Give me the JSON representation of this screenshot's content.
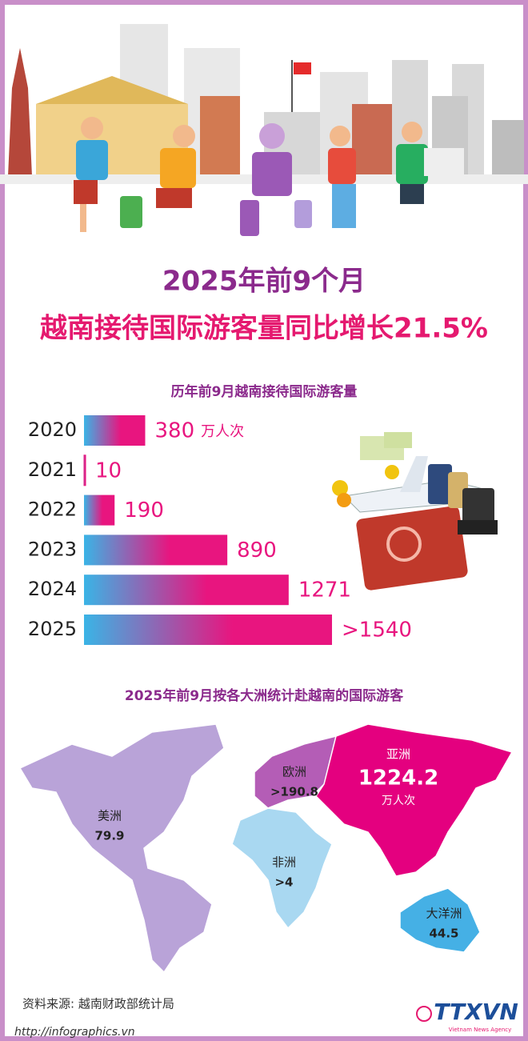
{
  "header": {
    "title_line1": "2025年前9个月",
    "title_line2": "越南接待国际游客量同比增长21.5%"
  },
  "chart_data": [
    {
      "type": "bar",
      "orientation": "horizontal",
      "title": "历年前9月越南接待国际游客量",
      "categories": [
        "2020",
        "2021",
        "2022",
        "2023",
        "2024",
        "2025"
      ],
      "values": [
        380,
        10,
        190,
        890,
        1271,
        1540
      ],
      "value_labels": [
        "380",
        "10",
        "190",
        "890",
        "1271",
        ">1540"
      ],
      "annotation": "万人次",
      "colors": [
        "#3ab4e6",
        "#e8157f"
      ]
    },
    {
      "type": "map",
      "title": "2025年前9月按各大洲统计赴越南的国际游客",
      "categories": [
        "美洲",
        "欧洲",
        "亚洲",
        "非洲",
        "大洋洲"
      ],
      "values": [
        79.9,
        190.8,
        1224.2,
        4,
        44.5
      ],
      "value_labels": [
        "79.9",
        ">190.8",
        "1224.2",
        ">4",
        "44.5"
      ],
      "annotation": "万人次",
      "colors": [
        "#b9a3d8",
        "#b45db6",
        "#e4007f",
        "#a9d8f1",
        "#45b0e5"
      ]
    }
  ],
  "footer": {
    "source": "资料来源: 越南财政部统计局",
    "url": "http://infographics.vn",
    "logo": "TTXVN",
    "logo_sub": "Vietnam News Agency"
  }
}
